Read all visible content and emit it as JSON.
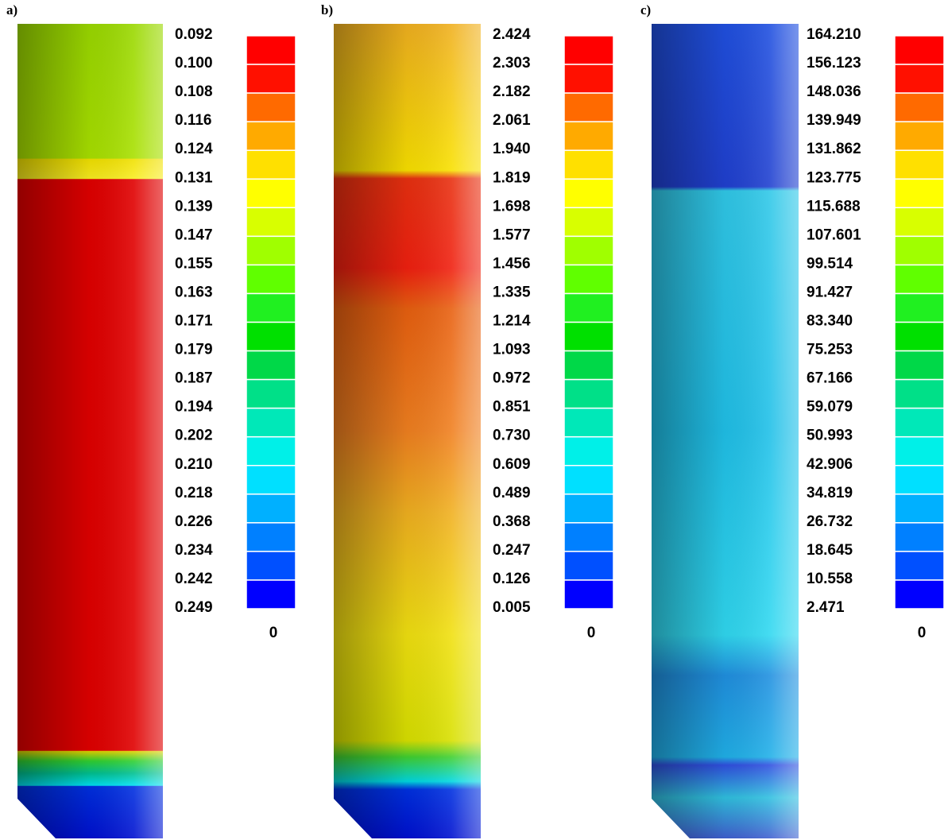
{
  "panels": [
    {
      "label": "a)",
      "scale": [
        "0.092",
        "0.100",
        "0.108",
        "0.116",
        "0.124",
        "0.131",
        "0.139",
        "0.147",
        "0.155",
        "0.163",
        "0.171",
        "0.179",
        "0.187",
        "0.194",
        "0.202",
        "0.210",
        "0.218",
        "0.226",
        "0.234",
        "0.242",
        "0.249"
      ],
      "zero": "0"
    },
    {
      "label": "b)",
      "scale": [
        "2.424",
        "2.303",
        "2.182",
        "2.061",
        "1.940",
        "1.819",
        "1.698",
        "1.577",
        "1.456",
        "1.335",
        "1.214",
        "1.093",
        "0.972",
        "0.851",
        "0.730",
        "0.609",
        "0.489",
        "0.368",
        "0.247",
        "0.126",
        "0.005"
      ],
      "zero": "0"
    },
    {
      "label": "c)",
      "scale": [
        "164.210",
        "156.123",
        "148.036",
        "139.949",
        "131.862",
        "123.775",
        "115.688",
        "107.601",
        "99.514",
        "91.427",
        "83.340",
        "75.253",
        "67.166",
        "59.079",
        "50.993",
        "42.906",
        "34.819",
        "26.732",
        "18.645",
        "10.558",
        "2.471"
      ],
      "zero": "0"
    }
  ]
}
